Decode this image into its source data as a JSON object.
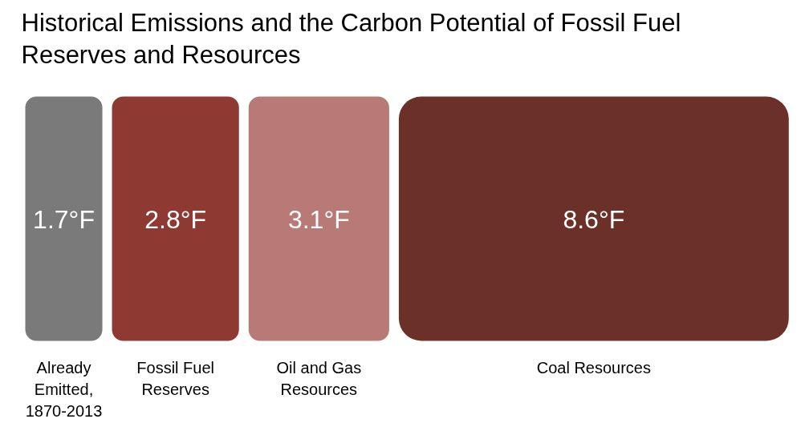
{
  "chart_data": {
    "type": "other",
    "title": "Historical Emissions and the Carbon Potential of Fossil Fuel Reserves and Resources",
    "categories": [
      "Already Emitted, 1870-2013",
      "Fossil Fuel Reserves",
      "Oil and Gas Resources",
      "Coal Resources"
    ],
    "values": [
      1.7,
      2.8,
      3.1,
      8.6
    ],
    "value_labels": [
      "1.7°F",
      "2.8°F",
      "3.1°F",
      "8.6°F"
    ],
    "colors": [
      "#7a7a7a",
      "#8e3a33",
      "#b87a76",
      "#6b3128"
    ]
  }
}
